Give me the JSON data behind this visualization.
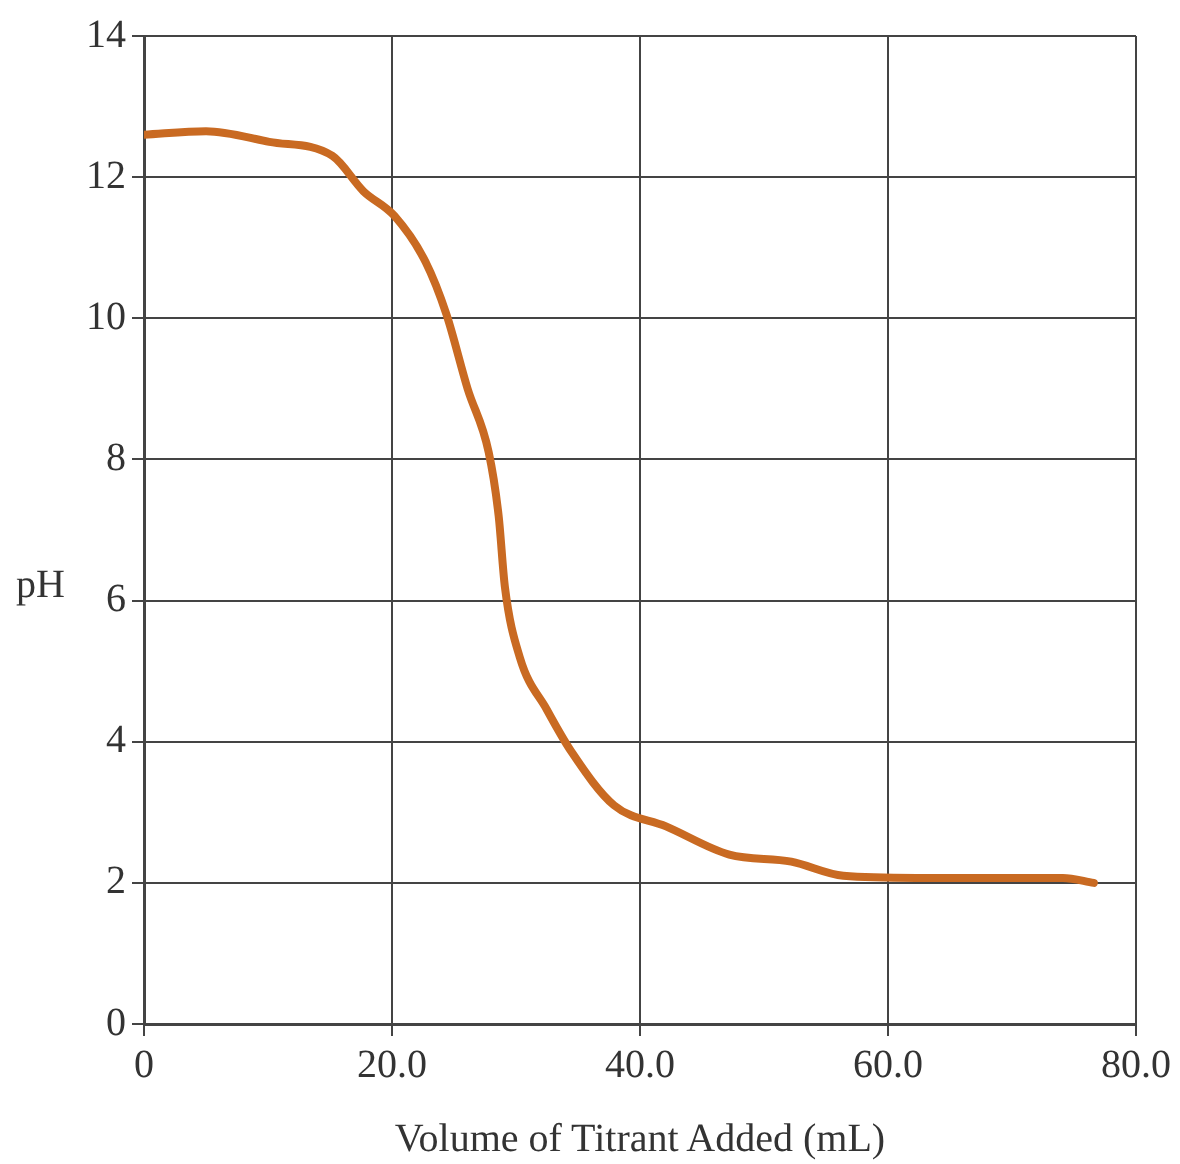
{
  "chart_data": {
    "type": "line",
    "xlabel": "Volume of Titrant Added (mL)",
    "ylabel": "pH",
    "x": [
      0,
      5,
      10.1,
      15.2,
      17.7,
      20.2,
      22.7,
      24.4,
      26.1,
      27.8,
      28.6,
      29.1,
      30.3,
      32.5,
      34.5,
      37.9,
      42.1,
      47.2,
      52.2,
      56.4,
      62.3,
      74.1,
      76.6
    ],
    "series": [
      {
        "color": "#c96a22",
        "values": [
          12.6,
          12.65,
          12.5,
          12.3,
          11.8,
          11.45,
          10.8,
          10.05,
          9.0,
          8.1,
          7.2,
          6.2,
          5.2,
          4.45,
          3.85,
          3.1,
          2.8,
          2.4,
          2.3,
          2.1,
          2.07,
          2.07,
          2.0
        ]
      }
    ],
    "xlim": [
      0,
      80
    ],
    "xticks": [
      0,
      {
        "value": 20,
        "label": "20.0"
      },
      {
        "value": 40,
        "label": "40.0"
      },
      {
        "value": 60,
        "label": "60.0"
      },
      {
        "value": 80,
        "label": "80.0"
      }
    ],
    "ylim": [
      0,
      14
    ],
    "yticks": [
      0,
      2,
      4,
      6,
      8,
      10,
      12,
      14
    ],
    "grid": true,
    "legend": false,
    "marker": "none",
    "line_style": "solid"
  }
}
